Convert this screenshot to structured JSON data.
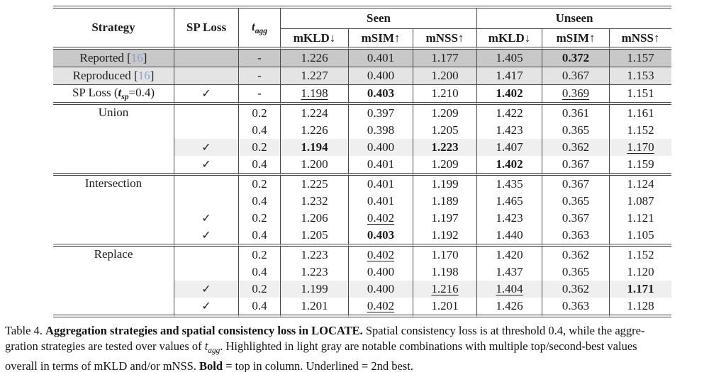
{
  "colors": {
    "row_dark": "#c8c8c8",
    "row_light": "#e4e4e4",
    "row_highlight": "#efefef",
    "citation": "#8a9fd4",
    "line": "#474747"
  },
  "table": {
    "header": {
      "strategy": "Strategy",
      "sp_loss": "SP Loss",
      "t_agg_segments": [
        {
          "t": "t",
          "s": "bi"
        },
        {
          "t": "agg",
          "s": "sub-bi"
        }
      ],
      "seen": "Seen",
      "unseen": "Unseen",
      "metrics": [
        "mKLD↓",
        "mSIM↑",
        "mNSS↑",
        "mKLD↓",
        "mSIM↑",
        "mNSS↑"
      ]
    },
    "checkmark": "✓",
    "rows": [
      {
        "strategy": [
          {
            "t": "Reported ["
          },
          {
            "t": "16",
            "s": "cite"
          },
          {
            "t": "]"
          }
        ],
        "hl": "dark",
        "rule": "single",
        "sp": "",
        "tagg": "-",
        "cells": [
          {
            "v": "1.226"
          },
          {
            "v": "0.401"
          },
          {
            "v": "1.177"
          },
          {
            "v": "1.405"
          },
          {
            "v": "0.372",
            "s": "b"
          },
          {
            "v": "1.157"
          }
        ]
      },
      {
        "strategy": [
          {
            "t": "Reproduced ["
          },
          {
            "t": "16",
            "s": "cite"
          },
          {
            "t": "]"
          }
        ],
        "hl": "light",
        "rule": "single",
        "sp": "",
        "tagg": "-",
        "cells": [
          {
            "v": "1.227"
          },
          {
            "v": "0.400"
          },
          {
            "v": "1.200"
          },
          {
            "v": "1.417"
          },
          {
            "v": "0.367"
          },
          {
            "v": "1.153"
          }
        ]
      },
      {
        "strategy": [
          {
            "t": "SP Loss ("
          },
          {
            "t": "t",
            "s": "bi"
          },
          {
            "t": "sp",
            "s": "sub-bi"
          },
          {
            "t": "=0.4)"
          }
        ],
        "rule": "double",
        "sp": "✓",
        "tagg": "-",
        "cells": [
          {
            "v": "1.198",
            "s": "u"
          },
          {
            "v": "0.403",
            "s": "b"
          },
          {
            "v": "1.210"
          },
          {
            "v": "1.402",
            "s": "b"
          },
          {
            "v": "0.369",
            "s": "u"
          },
          {
            "v": "1.151"
          }
        ]
      },
      {
        "strategy": [
          {
            "t": "Union"
          }
        ],
        "strategy_rowspan": 4,
        "sp": "",
        "tagg": "0.2",
        "cells": [
          {
            "v": "1.224"
          },
          {
            "v": "0.397"
          },
          {
            "v": "1.209"
          },
          {
            "v": "1.422"
          },
          {
            "v": "0.361"
          },
          {
            "v": "1.161"
          }
        ]
      },
      {
        "sp": "",
        "tagg": "0.4",
        "cells": [
          {
            "v": "1.226"
          },
          {
            "v": "0.398"
          },
          {
            "v": "1.205"
          },
          {
            "v": "1.423"
          },
          {
            "v": "0.365"
          },
          {
            "v": "1.152"
          }
        ]
      },
      {
        "hl": "partial",
        "sp": "✓",
        "tagg": "0.2",
        "cells": [
          {
            "v": "1.194",
            "s": "b"
          },
          {
            "v": "0.400"
          },
          {
            "v": "1.223",
            "s": "b"
          },
          {
            "v": "1.407"
          },
          {
            "v": "0.362"
          },
          {
            "v": "1.170",
            "s": "u"
          }
        ]
      },
      {
        "rule": "double",
        "sp": "✓",
        "tagg": "0.4",
        "cells": [
          {
            "v": "1.200"
          },
          {
            "v": "0.401"
          },
          {
            "v": "1.209"
          },
          {
            "v": "1.402",
            "s": "b"
          },
          {
            "v": "0.367"
          },
          {
            "v": "1.159"
          }
        ]
      },
      {
        "strategy": [
          {
            "t": "Intersection"
          }
        ],
        "strategy_rowspan": 4,
        "sp": "",
        "tagg": "0.2",
        "cells": [
          {
            "v": "1.225"
          },
          {
            "v": "0.401"
          },
          {
            "v": "1.199"
          },
          {
            "v": "1.435"
          },
          {
            "v": "0.367"
          },
          {
            "v": "1.124"
          }
        ]
      },
      {
        "sp": "",
        "tagg": "0.4",
        "cells": [
          {
            "v": "1.232"
          },
          {
            "v": "0.401"
          },
          {
            "v": "1.189"
          },
          {
            "v": "1.465"
          },
          {
            "v": "0.365"
          },
          {
            "v": "1.087"
          }
        ]
      },
      {
        "sp": "✓",
        "tagg": "0.2",
        "cells": [
          {
            "v": "1.206"
          },
          {
            "v": "0.402",
            "s": "u"
          },
          {
            "v": "1.197"
          },
          {
            "v": "1.423"
          },
          {
            "v": "0.367"
          },
          {
            "v": "1.121"
          }
        ]
      },
      {
        "rule": "double",
        "sp": "✓",
        "tagg": "0.4",
        "cells": [
          {
            "v": "1.205"
          },
          {
            "v": "0.403",
            "s": "b"
          },
          {
            "v": "1.192"
          },
          {
            "v": "1.440"
          },
          {
            "v": "0.363"
          },
          {
            "v": "1.105"
          }
        ]
      },
      {
        "strategy": [
          {
            "t": "Replace"
          }
        ],
        "strategy_rowspan": 4,
        "sp": "",
        "tagg": "0.2",
        "cells": [
          {
            "v": "1.223"
          },
          {
            "v": "0.402",
            "s": "u"
          },
          {
            "v": "1.170"
          },
          {
            "v": "1.420"
          },
          {
            "v": "0.362"
          },
          {
            "v": "1.152"
          }
        ]
      },
      {
        "sp": "",
        "tagg": "0.4",
        "cells": [
          {
            "v": "1.223"
          },
          {
            "v": "0.400"
          },
          {
            "v": "1.198"
          },
          {
            "v": "1.437"
          },
          {
            "v": "0.365"
          },
          {
            "v": "1.120"
          }
        ]
      },
      {
        "hl": "partial",
        "sp": "✓",
        "tagg": "0.2",
        "cells": [
          {
            "v": "1.199"
          },
          {
            "v": "0.400"
          },
          {
            "v": "1.216",
            "s": "u"
          },
          {
            "v": "1.404",
            "s": "u"
          },
          {
            "v": "0.362"
          },
          {
            "v": "1.171",
            "s": "b"
          }
        ]
      },
      {
        "rule": "double",
        "sp": "✓",
        "tagg": "0.4",
        "cells": [
          {
            "v": "1.201"
          },
          {
            "v": "0.402",
            "s": "u"
          },
          {
            "v": "1.201"
          },
          {
            "v": "1.426"
          },
          {
            "v": "0.363"
          },
          {
            "v": "1.128"
          }
        ]
      }
    ]
  },
  "caption": {
    "lines": [
      [
        {
          "t": "Table 4. "
        },
        {
          "t": "Aggregation strategies and spatial consistency loss in LOCATE.",
          "s": "b"
        },
        {
          "t": " Spatial consistency loss is at threshold 0.4, while the aggre-"
        }
      ],
      [
        {
          "t": "gration strategies are tested over values of "
        },
        {
          "t": "t",
          "s": "i"
        },
        {
          "t": "agg",
          "s": "sub-i"
        },
        {
          "t": ". Highlighted in light gray are notable combinations with multiple top/second-best values"
        }
      ],
      [
        {
          "t": "overall in terms of mKLD and/or mNSS. "
        },
        {
          "t": "Bold",
          "s": "b"
        },
        {
          "t": " = top in column. "
        },
        {
          "t": "Underlined",
          "s": "u"
        },
        {
          "t": " = 2nd best."
        }
      ]
    ]
  }
}
